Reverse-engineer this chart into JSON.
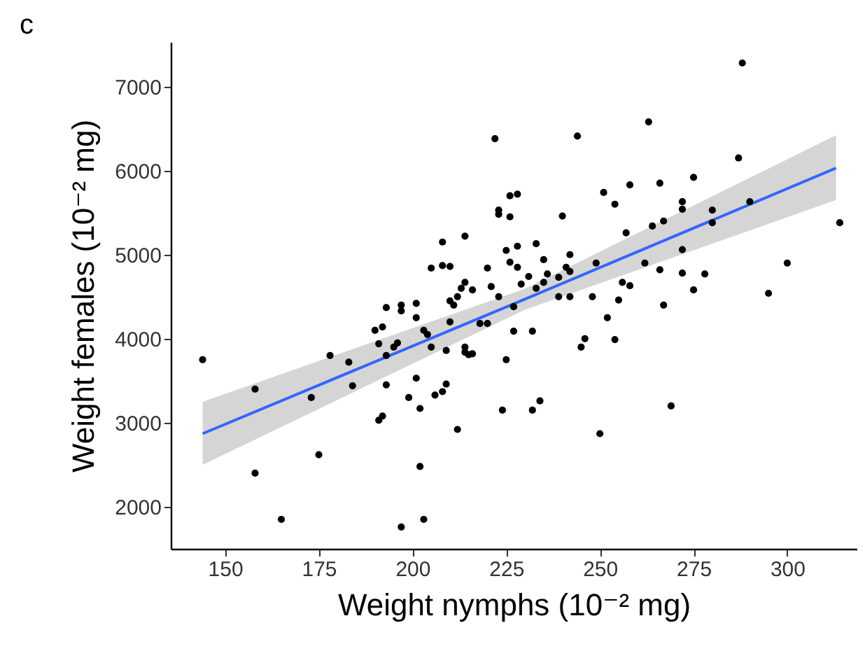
{
  "chart_data": {
    "type": "scatter",
    "title": "c",
    "xlabel": "Weight nymphs (10⁻² mg)",
    "ylabel": "Weight females (10⁻² mg)",
    "xlim": [
      135.5,
      318.5
    ],
    "ylim": [
      1500,
      7530
    ],
    "xticks": [
      150,
      175,
      200,
      225,
      250,
      275,
      300
    ],
    "yticks": [
      2000,
      3000,
      4000,
      5000,
      6000,
      7000
    ],
    "grid": false,
    "series": [
      {
        "marker": "circle",
        "color": "#000000",
        "x": [
          222,
          226,
          228,
          223,
          223,
          226,
          208,
          214,
          225,
          226,
          205,
          208,
          210,
          220,
          214,
          213,
          216,
          212,
          210,
          211,
          221,
          223,
          201,
          197,
          193,
          144,
          158,
          158,
          165,
          173,
          175,
          178,
          183,
          184,
          190,
          192,
          191,
          197,
          201,
          193,
          195,
          196,
          193,
          191,
          192,
          197,
          199,
          201,
          202,
          202,
          203,
          203,
          204,
          205,
          206,
          208,
          209,
          209,
          210,
          212,
          214,
          214,
          215,
          216,
          218,
          220,
          225,
          224,
          227,
          227,
          288,
          263,
          244,
          287,
          251,
          258,
          266,
          275,
          254,
          240,
          272,
          272,
          280,
          290,
          280,
          314,
          264,
          267,
          257,
          228,
          233,
          228,
          235,
          242,
          236,
          239,
          242,
          241,
          231,
          229,
          233,
          235,
          249,
          262,
          272,
          300,
          266,
          272,
          278,
          256,
          258,
          239,
          242,
          248,
          255,
          275,
          295,
          267,
          232,
          232,
          234,
          245,
          246,
          252,
          254,
          250,
          269
        ],
        "values": [
          6380,
          5700,
          5720,
          5530,
          5480,
          5450,
          5150,
          5220,
          5050,
          4910,
          4840,
          4870,
          4860,
          4840,
          4670,
          4600,
          4580,
          4500,
          4450,
          4400,
          4620,
          4500,
          4420,
          4400,
          4370,
          3750,
          3400,
          2400,
          1850,
          3300,
          2620,
          3800,
          3720,
          3440,
          4100,
          4140,
          3940,
          4330,
          4250,
          3800,
          3900,
          3950,
          3450,
          3030,
          3080,
          1760,
          3300,
          3530,
          3170,
          2480,
          1850,
          4100,
          4050,
          3900,
          3330,
          3370,
          3460,
          3860,
          4200,
          2920,
          3900,
          3840,
          3810,
          3820,
          4180,
          4180,
          3750,
          3150,
          4090,
          4380,
          7280,
          6580,
          6410,
          6150,
          5740,
          5830,
          5850,
          5920,
          5600,
          5460,
          5630,
          5540,
          5530,
          5630,
          5380,
          5380,
          5340,
          5400,
          5260,
          5100,
          5130,
          4850,
          4940,
          5000,
          4770,
          4730,
          4800,
          4850,
          4740,
          4650,
          4600,
          4670,
          4900,
          4900,
          5060,
          4900,
          4820,
          4780,
          4770,
          4670,
          4630,
          4500,
          4500,
          4500,
          4460,
          4580,
          4540,
          4400,
          4090,
          3150,
          3260,
          3900,
          4000,
          4250,
          3990,
          2870,
          3200
        ]
      },
      {
        "type": "line",
        "color": "#3366ff",
        "x": [
          144,
          230,
          313
        ],
        "values": [
          2870,
          4470,
          6030
        ],
        "lower": [
          2500,
          4345,
          5650
        ],
        "upper": [
          3250,
          4595,
          6420
        ]
      }
    ]
  }
}
